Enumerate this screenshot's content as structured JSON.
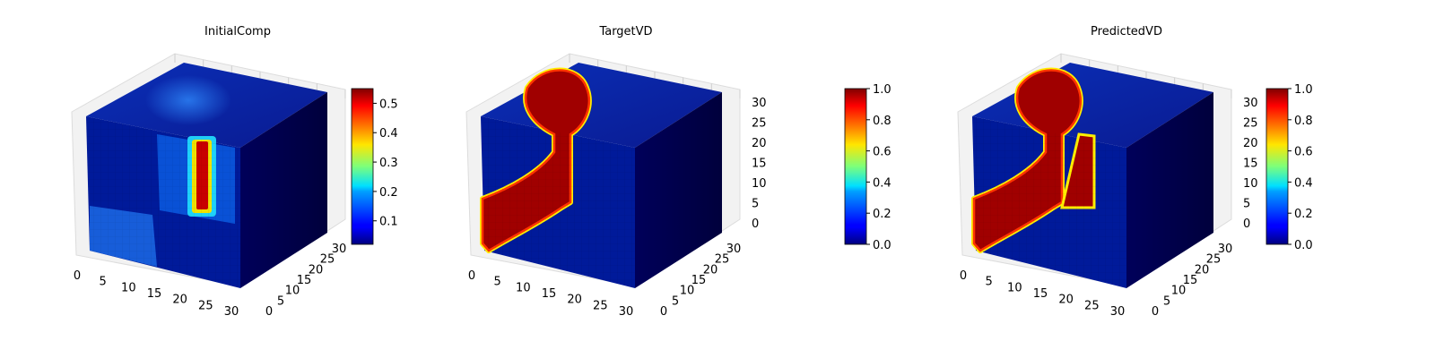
{
  "chart_data": [
    {
      "type": "heatmap",
      "plot": "3d-voxel",
      "title": "InitialComp",
      "colormap": "jet",
      "axes": {
        "x_ticks": [
          "0",
          "5",
          "10",
          "15",
          "20",
          "25",
          "30"
        ],
        "y_ticks": [
          "0",
          "5",
          "10",
          "15",
          "20",
          "25",
          "30"
        ],
        "z_ticks": []
      },
      "colorbar": {
        "range": [
          0.02,
          0.55
        ],
        "ticks": [
          "0.1",
          "0.2",
          "0.3",
          "0.4",
          "0.5"
        ]
      }
    },
    {
      "type": "heatmap",
      "plot": "3d-voxel",
      "title": "TargetVD",
      "colormap": "jet",
      "axes": {
        "x_ticks": [
          "0",
          "5",
          "10",
          "15",
          "20",
          "25",
          "30"
        ],
        "y_ticks": [
          "0",
          "5",
          "10",
          "15",
          "20",
          "25",
          "30"
        ],
        "z_ticks": [
          "0",
          "5",
          "10",
          "15",
          "20",
          "25",
          "30"
        ]
      },
      "colorbar": {
        "range": [
          0.0,
          1.0
        ],
        "ticks": [
          "0.0",
          "0.2",
          "0.4",
          "0.6",
          "0.8",
          "1.0"
        ]
      }
    },
    {
      "type": "heatmap",
      "plot": "3d-voxel",
      "title": "PredictedVD",
      "colormap": "jet",
      "axes": {
        "x_ticks": [
          "0",
          "5",
          "10",
          "15",
          "20",
          "25",
          "30"
        ],
        "y_ticks": [
          "0",
          "5",
          "10",
          "15",
          "20",
          "25",
          "30"
        ],
        "z_ticks": [
          "0",
          "5",
          "10",
          "15",
          "20",
          "25",
          "30"
        ]
      },
      "colorbar": {
        "range": [
          0.0,
          1.0
        ],
        "ticks": [
          "0.0",
          "0.2",
          "0.4",
          "0.6",
          "0.8",
          "1.0"
        ]
      }
    }
  ]
}
